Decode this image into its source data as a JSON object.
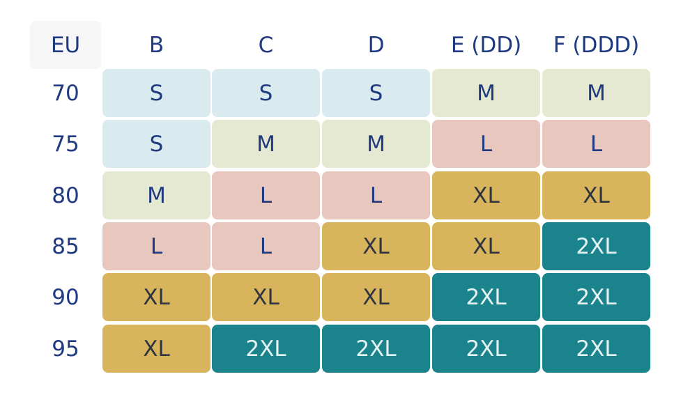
{
  "table": {
    "header": [
      "EU",
      "B",
      "C",
      "D",
      "E (DD)",
      "F (DDD)"
    ],
    "rows": [
      {
        "label": "70",
        "cells": [
          "S",
          "S",
          "S",
          "M",
          "M"
        ]
      },
      {
        "label": "75",
        "cells": [
          "S",
          "M",
          "M",
          "L",
          "L"
        ]
      },
      {
        "label": "80",
        "cells": [
          "M",
          "L",
          "L",
          "XL",
          "XL"
        ]
      },
      {
        "label": "85",
        "cells": [
          "L",
          "L",
          "XL",
          "XL",
          "2XL"
        ]
      },
      {
        "label": "90",
        "cells": [
          "XL",
          "XL",
          "XL",
          "2XL",
          "2XL"
        ]
      },
      {
        "label": "95",
        "cells": [
          "XL",
          "2XL",
          "2XL",
          "2XL",
          "2XL"
        ]
      }
    ]
  },
  "styles": {
    "S": {
      "bg": "#d9ebef",
      "fg": "#1f3a80"
    },
    "M": {
      "bg": "#e6e9d2",
      "fg": "#1f3a80"
    },
    "L": {
      "bg": "#e8c7bf",
      "fg": "#1f3a80"
    },
    "XL": {
      "bg": "#d8b45c",
      "fg": "#2e3440"
    },
    "2XL": {
      "bg": "#1a838c",
      "fg": "#e6f3f4"
    }
  }
}
